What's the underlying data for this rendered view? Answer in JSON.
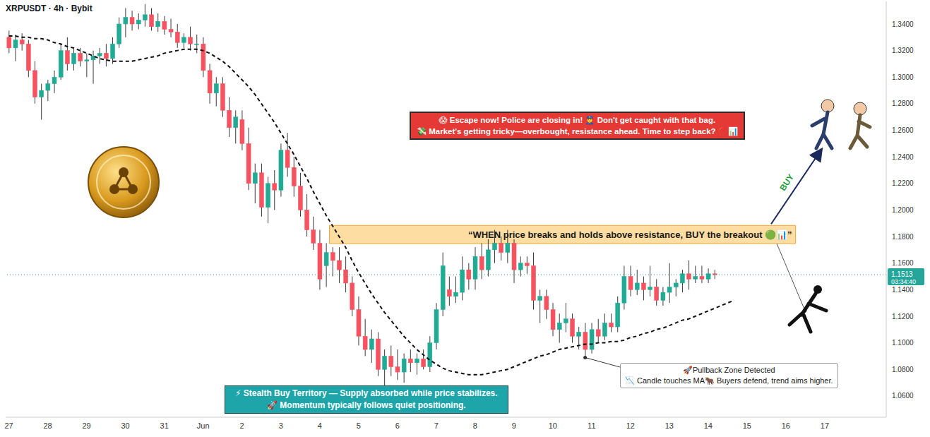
{
  "chart_data": {
    "type": "candlestick",
    "title": "XRPUSDT · 4h · Bybit",
    "categories": [
      "27",
      null,
      null,
      null,
      null,
      null,
      "28",
      null,
      null,
      null,
      null,
      null,
      "29",
      null,
      null,
      null,
      null,
      null,
      "30",
      null,
      null,
      null,
      null,
      null,
      "31",
      null,
      null,
      null,
      null,
      null,
      "Jun",
      null,
      null,
      null,
      null,
      null,
      "2",
      null,
      null,
      null,
      null,
      null,
      "3",
      null,
      null,
      null,
      null,
      null,
      "4",
      null,
      null,
      null,
      null,
      null,
      "5",
      null,
      null,
      null,
      null,
      null,
      "6",
      null,
      null,
      null,
      null,
      null,
      "7",
      null,
      null,
      null,
      null,
      null,
      "8",
      null,
      null,
      null,
      null,
      null,
      "9",
      null,
      null,
      null,
      null,
      null,
      "10",
      null,
      null,
      null,
      null,
      null,
      "11",
      null,
      null,
      null,
      null,
      null,
      "12",
      null,
      null,
      null,
      null,
      null,
      "13",
      null,
      null,
      null,
      null,
      null,
      "14",
      null,
      null,
      null,
      null,
      null,
      "15",
      null,
      null,
      null,
      null,
      null,
      "16",
      null,
      null,
      null,
      null,
      null,
      "17",
      null,
      null,
      null,
      null,
      null,
      null,
      null,
      null,
      null
    ],
    "series": [
      {
        "type": "candlestick",
        "color": {
          "up": "#22ab94",
          "down": "#f7525f"
        },
        "open": [
          1.33,
          1.322,
          1.328,
          1.325,
          1.305,
          1.285,
          1.29,
          1.295,
          1.3,
          1.32,
          1.31,
          1.318,
          1.312,
          1.313,
          1.316,
          1.318,
          1.314,
          1.325,
          1.34,
          1.345,
          1.34,
          1.343,
          1.347,
          1.338,
          1.342,
          1.336,
          1.334,
          1.326,
          1.33,
          1.325,
          1.325,
          1.305,
          1.288,
          1.295,
          1.275,
          1.262,
          1.268,
          1.25,
          1.22,
          1.228,
          1.202,
          1.22,
          1.215,
          1.245,
          1.232,
          1.218,
          1.2,
          1.185,
          1.175,
          1.158,
          1.168,
          1.162,
          1.155,
          1.145,
          1.125,
          1.105,
          1.095,
          1.103,
          1.08,
          1.09,
          1.082,
          1.078,
          1.088,
          1.085,
          1.088,
          1.082,
          1.1,
          1.125,
          1.14,
          1.135,
          1.138,
          1.155,
          1.148,
          1.165,
          1.155,
          1.17,
          1.175,
          1.168,
          1.175,
          1.155,
          1.16,
          1.158,
          1.132,
          1.135,
          1.125,
          1.11,
          1.115,
          1.118,
          1.105,
          1.108,
          1.095,
          1.11,
          1.105,
          1.115,
          1.112,
          1.13,
          1.15,
          1.14,
          1.145,
          1.14,
          1.142,
          1.132,
          1.138,
          1.142,
          1.145,
          1.152,
          1.148,
          1.15,
          1.148,
          1.152,
          null,
          null,
          null,
          null,
          null,
          null,
          null,
          null,
          null,
          null,
          null,
          null,
          null,
          null,
          null,
          null,
          null,
          null,
          null,
          null,
          null,
          null,
          null,
          null,
          null,
          null
        ],
        "high": [
          1.335,
          1.332,
          1.333,
          1.328,
          1.312,
          1.295,
          1.298,
          1.305,
          1.325,
          1.33,
          1.322,
          1.322,
          1.318,
          1.32,
          1.322,
          1.325,
          1.33,
          1.345,
          1.352,
          1.35,
          1.348,
          1.355,
          1.352,
          1.348,
          1.346,
          1.344,
          1.34,
          1.333,
          1.338,
          1.332,
          1.33,
          1.31,
          1.3,
          1.3,
          1.285,
          1.275,
          1.275,
          1.262,
          1.235,
          1.235,
          1.225,
          1.23,
          1.25,
          1.258,
          1.24,
          1.228,
          1.212,
          1.195,
          1.185,
          1.175,
          1.172,
          1.172,
          1.165,
          1.15,
          1.135,
          1.118,
          1.11,
          1.108,
          1.095,
          1.098,
          1.095,
          1.092,
          1.095,
          1.092,
          1.095,
          1.105,
          1.13,
          1.168,
          1.15,
          1.15,
          1.165,
          1.16,
          1.172,
          1.175,
          1.178,
          1.185,
          1.18,
          1.185,
          1.178,
          1.165,
          1.165,
          1.168,
          1.14,
          1.14,
          1.13,
          1.122,
          1.13,
          1.122,
          1.112,
          1.115,
          1.115,
          1.118,
          1.122,
          1.122,
          1.135,
          1.158,
          1.158,
          1.155,
          1.15,
          1.158,
          1.148,
          1.142,
          1.16,
          1.148,
          1.155,
          1.162,
          1.158,
          1.158,
          1.156,
          1.155,
          null,
          null,
          null,
          null,
          null,
          null,
          null,
          null,
          null,
          null,
          null,
          null,
          null,
          null,
          null,
          null,
          null,
          null,
          null,
          null,
          null,
          null,
          null,
          null,
          null,
          null
        ],
        "low": [
          1.318,
          1.312,
          1.32,
          1.3,
          1.28,
          1.268,
          1.282,
          1.288,
          1.298,
          1.305,
          1.305,
          1.308,
          1.3,
          1.295,
          1.31,
          1.308,
          1.31,
          1.322,
          1.33,
          1.335,
          1.336,
          1.338,
          1.335,
          1.334,
          1.332,
          1.33,
          1.322,
          1.322,
          1.32,
          1.318,
          1.3,
          1.28,
          1.278,
          1.27,
          1.255,
          1.25,
          1.245,
          1.215,
          1.205,
          1.195,
          1.19,
          1.2,
          1.21,
          1.225,
          1.21,
          1.195,
          1.18,
          1.17,
          1.14,
          1.142,
          1.15,
          1.145,
          1.138,
          1.12,
          1.098,
          1.09,
          1.085,
          1.075,
          1.068,
          1.075,
          1.072,
          1.07,
          1.078,
          1.076,
          1.08,
          1.078,
          1.095,
          1.12,
          1.128,
          1.13,
          1.132,
          1.14,
          1.14,
          1.148,
          1.15,
          1.16,
          1.162,
          1.16,
          1.145,
          1.15,
          1.152,
          1.125,
          1.115,
          1.118,
          1.105,
          1.1,
          1.108,
          1.1,
          1.095,
          1.09,
          1.092,
          1.1,
          1.102,
          1.108,
          1.108,
          1.125,
          1.135,
          1.136,
          1.132,
          1.135,
          1.128,
          1.128,
          1.13,
          1.135,
          1.138,
          1.14,
          1.145,
          1.145,
          1.145,
          1.148,
          null,
          null,
          null,
          null,
          null,
          null,
          null,
          null,
          null,
          null,
          null,
          null,
          null,
          null,
          null,
          null,
          null,
          null,
          null,
          null,
          null,
          null,
          null,
          null,
          null,
          null
        ],
        "close": [
          1.322,
          1.328,
          1.325,
          1.305,
          1.285,
          1.29,
          1.295,
          1.3,
          1.32,
          1.31,
          1.318,
          1.312,
          1.313,
          1.316,
          1.318,
          1.314,
          1.325,
          1.34,
          1.345,
          1.34,
          1.343,
          1.347,
          1.338,
          1.342,
          1.336,
          1.334,
          1.326,
          1.33,
          1.325,
          1.325,
          1.305,
          1.288,
          1.295,
          1.275,
          1.262,
          1.27,
          1.25,
          1.22,
          1.228,
          1.202,
          1.22,
          1.215,
          1.245,
          1.232,
          1.218,
          1.2,
          1.185,
          1.175,
          1.148,
          1.168,
          1.162,
          1.155,
          1.145,
          1.125,
          1.105,
          1.095,
          1.103,
          1.08,
          1.09,
          1.082,
          1.078,
          1.088,
          1.085,
          1.088,
          1.082,
          1.1,
          1.125,
          1.158,
          1.135,
          1.138,
          1.155,
          1.148,
          1.165,
          1.155,
          1.17,
          1.175,
          1.168,
          1.175,
          1.155,
          1.16,
          1.158,
          1.132,
          1.135,
          1.125,
          1.11,
          1.115,
          1.118,
          1.105,
          1.108,
          1.095,
          1.11,
          1.105,
          1.115,
          1.112,
          1.13,
          1.15,
          1.14,
          1.145,
          1.14,
          1.142,
          1.132,
          1.138,
          1.142,
          1.145,
          1.152,
          1.148,
          1.15,
          1.148,
          1.152,
          1.1513,
          null,
          null,
          null,
          null,
          null,
          null,
          null,
          null,
          null,
          null,
          null,
          null,
          null,
          null,
          null,
          null,
          null,
          null,
          null,
          null,
          null,
          null,
          null,
          null,
          null,
          null
        ]
      },
      {
        "type": "line",
        "color": "#111111",
        "line_style": "dashed",
        "values": [
          1.331,
          1.331,
          1.33,
          1.33,
          1.329,
          1.329,
          1.328,
          1.326,
          1.325,
          1.323,
          1.322,
          1.32,
          1.318,
          1.316,
          1.314,
          1.313,
          1.312,
          1.312,
          1.312,
          1.312,
          1.313,
          1.314,
          1.315,
          1.316,
          1.318,
          1.319,
          1.32,
          1.321,
          1.321,
          1.321,
          1.32,
          1.318,
          1.315,
          1.312,
          1.308,
          1.303,
          1.298,
          1.293,
          1.287,
          1.28,
          1.273,
          1.266,
          1.258,
          1.25,
          1.242,
          1.233,
          1.224,
          1.214,
          1.205,
          1.196,
          1.188,
          1.18,
          1.172,
          1.162,
          1.153,
          1.145,
          1.137,
          1.13,
          1.123,
          1.117,
          1.111,
          1.105,
          1.1,
          1.095,
          1.091,
          1.087,
          1.084,
          1.081,
          1.079,
          1.078,
          1.077,
          1.076,
          1.076,
          1.076,
          1.077,
          1.078,
          1.079,
          1.08,
          1.082,
          1.084,
          1.086,
          1.088,
          1.09,
          1.091,
          1.093,
          1.095,
          1.096,
          1.097,
          1.098,
          1.099,
          1.099,
          1.1,
          1.1,
          1.101,
          1.101,
          1.102,
          1.104,
          1.105,
          1.107,
          1.108,
          1.11,
          1.111,
          1.113,
          1.115,
          1.117,
          1.118,
          1.12,
          1.122,
          1.124,
          1.126,
          1.128,
          1.13,
          1.132,
          null,
          null,
          null,
          null,
          null,
          null,
          null,
          null,
          null,
          null,
          null,
          null,
          null,
          null,
          null,
          null,
          null,
          null,
          null,
          null,
          null,
          null,
          null
        ]
      }
    ],
    "ylim": [
      1.044,
      1.357
    ],
    "yticks": [
      {
        "value": 1.06,
        "label": "1.0600"
      },
      {
        "value": 1.08,
        "label": "1.0800"
      },
      {
        "value": 1.1,
        "label": "1.1000"
      },
      {
        "value": 1.12,
        "label": "1.1200"
      },
      {
        "value": 1.14,
        "label": "1.1400"
      },
      {
        "value": 1.16,
        "label": "1.1600"
      },
      {
        "value": 1.18,
        "label": "1.1800"
      },
      {
        "value": 1.2,
        "label": "1.2000"
      },
      {
        "value": 1.22,
        "label": "1.2200"
      },
      {
        "value": 1.24,
        "label": "1.2400"
      },
      {
        "value": 1.26,
        "label": "1.2600"
      },
      {
        "value": 1.28,
        "label": "1.2800"
      },
      {
        "value": 1.3,
        "label": "1.3000"
      },
      {
        "value": 1.32,
        "label": "1.3200"
      },
      {
        "value": 1.34,
        "label": "1.3400"
      }
    ],
    "grid": false,
    "last_price": {
      "value": 1.1513,
      "countdown": "03:34:40",
      "color": "#26a69a"
    },
    "zone": {
      "x": [
        50,
        121
      ],
      "y": [
        1.1747,
        1.1884
      ],
      "color": "#fdd58a",
      "text": "“WHEN price breaks and holds above resistance, BUY the breakout 🟢📊”"
    },
    "annotations": {
      "warning": {
        "lines": [
          "😱 Escape now! Police are closing in! 👮‍♂️ Don't get caught with that bag.",
          "💸 Market's getting tricky—overbought, resistance ahead. Time to step back? 🚫📊"
        ],
        "color": "#e53935"
      },
      "buy": {
        "text": "BUY",
        "color": "#1e9e3a"
      },
      "stealth": {
        "lines": [
          "⚡ Stealth Buy Territory — Supply absorbed while price stabilizes.",
          "🚀 Momentum typically follows quiet positioning."
        ],
        "color": "#1ea5a9"
      },
      "pullback": {
        "lines": [
          "🚀Pullback Zone Detected",
          "📉 Candle touches MA🐂 Buyers defend, trend aims higher."
        ],
        "index": 89
      }
    }
  }
}
